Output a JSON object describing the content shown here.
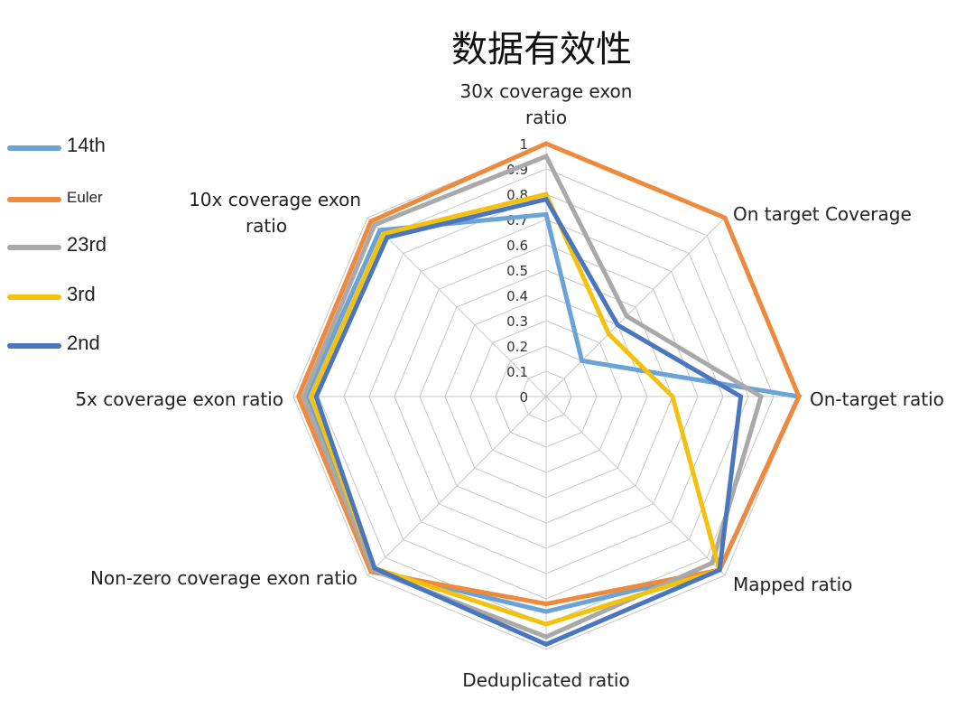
{
  "chart_data": {
    "type": "radar",
    "title": "数据有效性",
    "axes": [
      "30x coverage exon ratio",
      "On target Coverage",
      "On-target ratio",
      "Mapped ratio",
      "Deduplicated ratio",
      "Non-zero coverage exon ratio",
      "5x coverage exon ratio",
      "10x coverage exon ratio"
    ],
    "axis_label_lines": [
      [
        "30x coverage exon",
        "ratio"
      ],
      [
        "On target Coverage"
      ],
      [
        "On-target ratio"
      ],
      [
        "Mapped ratio"
      ],
      [
        "Deduplicated ratio"
      ],
      [
        "Non-zero coverage exon ratio"
      ],
      [
        "5x coverage exon ratio"
      ],
      [
        "10x coverage exon",
        "ratio"
      ]
    ],
    "ticks": [
      "0",
      "0.1",
      "0.2",
      "0.3",
      "0.4",
      "0.5",
      "0.6",
      "0.7",
      "0.8",
      "0.9",
      "1"
    ],
    "range": [
      0,
      1
    ],
    "grid": true,
    "legend_position": "left",
    "series": [
      {
        "name": "14th",
        "color": "#6aa3d5",
        "values": [
          0.72,
          0.2,
          1.0,
          0.97,
          0.85,
          0.97,
          0.95,
          0.93
        ]
      },
      {
        "name": "Euler",
        "color": "#ed8a3e",
        "values": [
          1.0,
          1.0,
          1.0,
          0.97,
          0.82,
          0.98,
          0.98,
          0.98
        ]
      },
      {
        "name": "23rd",
        "color": "#a9a9a9",
        "values": [
          0.95,
          0.45,
          0.85,
          0.93,
          0.95,
          0.97,
          0.96,
          0.96
        ]
      },
      {
        "name": "3rd",
        "color": "#f4c10f",
        "values": [
          0.8,
          0.35,
          0.5,
          0.97,
          0.9,
          0.96,
          0.93,
          0.91
        ]
      },
      {
        "name": "2nd",
        "color": "#4a76c0",
        "values": [
          0.78,
          0.4,
          0.77,
          0.97,
          0.98,
          0.96,
          0.91,
          0.89
        ]
      }
    ]
  }
}
